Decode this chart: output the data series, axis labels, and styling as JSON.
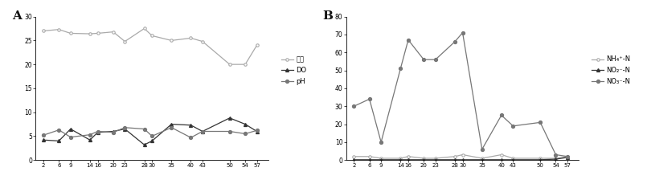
{
  "x": [
    2,
    6,
    9,
    14,
    16,
    20,
    23,
    28,
    30,
    35,
    40,
    43,
    50,
    54,
    57
  ],
  "temp": [
    27.0,
    27.3,
    26.5,
    26.4,
    26.5,
    26.8,
    24.8,
    27.5,
    26.0,
    25.0,
    25.5,
    24.8,
    20.0,
    20.0,
    24.0
  ],
  "do": [
    4.2,
    4.0,
    6.5,
    4.2,
    5.8,
    6.0,
    6.5,
    3.2,
    4.0,
    7.5,
    7.3,
    6.0,
    8.8,
    7.5,
    6.0
  ],
  "ph": [
    5.2,
    6.3,
    4.8,
    5.3,
    6.0,
    5.8,
    6.8,
    6.5,
    5.0,
    6.8,
    4.7,
    6.0,
    6.0,
    5.5,
    6.2
  ],
  "nh4": [
    2.0,
    2.0,
    1.0,
    1.0,
    2.0,
    1.0,
    1.0,
    2.0,
    3.0,
    1.0,
    3.0,
    1.0,
    1.0,
    1.0,
    2.0
  ],
  "no2": [
    0.2,
    0.2,
    0.2,
    0.2,
    0.2,
    0.2,
    0.2,
    0.2,
    0.2,
    0.2,
    0.2,
    0.2,
    0.2,
    0.5,
    1.5
  ],
  "no3": [
    30.0,
    34.0,
    10.0,
    51.0,
    67.0,
    56.0,
    56.0,
    66.0,
    71.0,
    6.0,
    25.0,
    19.0,
    21.0,
    3.0,
    2.0
  ],
  "temp_color": "#aaaaaa",
  "do_color": "#333333",
  "ph_color": "#777777",
  "nh4_color": "#aaaaaa",
  "no2_color": "#333333",
  "no3_color": "#777777",
  "label_temp": "水温",
  "label_do": "DO",
  "label_ph": "pH",
  "label_nh4": "NH₄⁺-N",
  "label_no2": "NO₂⁻-N",
  "label_no3": "NO₃⁻-N",
  "A_ylim": [
    0,
    30
  ],
  "B_ylim": [
    0,
    80
  ],
  "A_yticks": [
    0,
    5,
    10,
    15,
    20,
    25,
    30
  ],
  "B_yticks": [
    0,
    10,
    20,
    30,
    40,
    50,
    60,
    70,
    80
  ],
  "background": "#ffffff"
}
